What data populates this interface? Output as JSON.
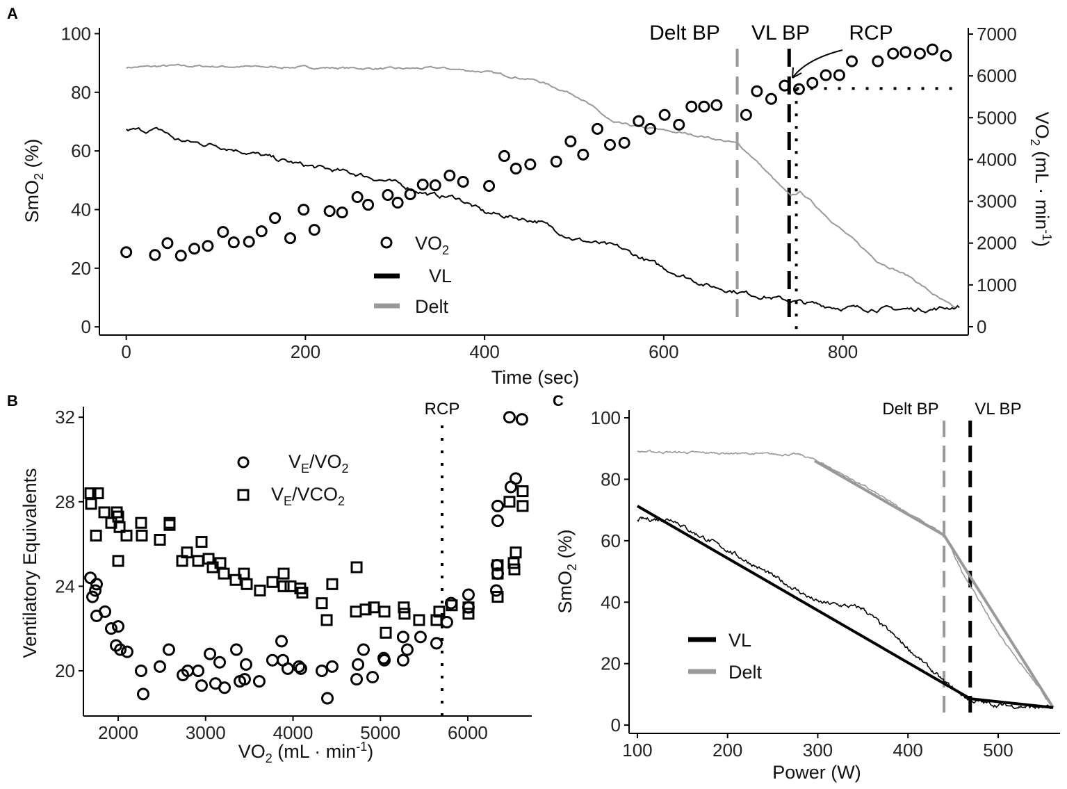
{
  "colors": {
    "vl": "#000000",
    "delt": "#999999",
    "points": "#000000"
  },
  "chart_data": [
    {
      "panel": "A",
      "type": "line",
      "xlabel": "Time (sec)",
      "ylabel": {
        "main": "SmO",
        "sub": "2",
        "rest": " (%)"
      },
      "y2label": {
        "main": "VO",
        "sub": "2",
        "rest": " (mL · min",
        "sup": "-1",
        "end": ")"
      },
      "xlim": [
        -30,
        940
      ],
      "ylim": [
        -2.8,
        102
      ],
      "y2lim": [
        -200,
        7150
      ],
      "xticks": [
        0,
        200,
        400,
        600,
        800
      ],
      "yticks": [
        0,
        20,
        40,
        60,
        80,
        100
      ],
      "y2ticks": [
        0,
        1000,
        2000,
        3000,
        4000,
        5000,
        6000,
        7000
      ],
      "legend": {
        "position": "center-bottom",
        "items": [
          {
            "main": "VO",
            "sub": "2",
            "shape": "circle"
          },
          {
            "main": "VL",
            "shape": "line"
          },
          {
            "main": "Delt",
            "shape": "line"
          }
        ]
      },
      "annotations": {
        "delt_bp": "Delt BP",
        "vl_bp": "VL BP",
        "rcp": "RCP"
      },
      "markers": {
        "delt_bp_time": 682,
        "vl_bp_time": 740,
        "rcp_time": 748,
        "rcp_vo2": 5700
      },
      "series": [
        {
          "name": "VL",
          "axis": "left",
          "x": [
            0,
            40,
            55,
            70,
            100,
            130,
            170,
            200,
            260,
            300,
            340,
            370,
            400,
            460,
            500,
            550,
            600,
            650,
            700,
            740,
            760,
            800,
            860,
            900,
            930
          ],
          "y": [
            67,
            67,
            64,
            63,
            62,
            60,
            57,
            55,
            52,
            49,
            45,
            44,
            39,
            36,
            30,
            27,
            20,
            14,
            11,
            9,
            8,
            6.5,
            6,
            6,
            7
          ]
        },
        {
          "name": "Delt",
          "axis": "left",
          "x": [
            0,
            50,
            200,
            300,
            350,
            400,
            459,
            505,
            544,
            644,
            682,
            699,
            741,
            753,
            799,
            838,
            877,
            908,
            927
          ],
          "y": [
            88.5,
            89,
            88.5,
            88,
            88.3,
            87,
            84,
            78.6,
            69.5,
            65,
            62.5,
            58,
            44.5,
            46,
            33,
            22.6,
            16.7,
            9.5,
            6
          ]
        },
        {
          "name": "VO2",
          "axis": "right",
          "type": "scatter",
          "x": [
            0,
            32,
            46,
            61,
            76,
            91,
            108,
            120,
            137,
            151,
            166,
            183,
            198,
            210,
            227,
            241,
            258,
            270,
            292,
            303,
            317,
            331,
            345,
            361,
            376,
            405,
            422,
            435,
            451,
            480,
            496,
            510,
            526,
            540,
            556,
            572,
            585,
            601,
            617,
            631,
            645,
            659,
            692,
            704,
            720,
            735,
            751,
            766,
            781,
            796,
            810,
            839,
            856,
            870,
            886,
            900,
            915
          ],
          "y": [
            1783,
            1717,
            2000,
            1700,
            1867,
            1933,
            2267,
            2017,
            2033,
            2283,
            2600,
            2117,
            2800,
            2317,
            2767,
            2733,
            3100,
            2917,
            3150,
            2967,
            3167,
            3400,
            3383,
            3617,
            3467,
            3367,
            4083,
            3783,
            3883,
            3950,
            4433,
            4117,
            4733,
            4350,
            4400,
            4917,
            4733,
            5067,
            4833,
            5267,
            5267,
            5300,
            5067,
            5633,
            5450,
            5767,
            5683,
            5833,
            6017,
            6017,
            6350,
            6350,
            6533,
            6567,
            6533,
            6633,
            6483
          ]
        }
      ]
    },
    {
      "panel": "B",
      "type": "scatter",
      "xlabel": {
        "main": "VO",
        "sub": "2",
        "rest": " (mL · min",
        "sup": "-1",
        "end": ")"
      },
      "ylabel": "Ventilatory Equivalents",
      "xlim": [
        1602,
        6732
      ],
      "ylim": [
        17.86,
        32.5
      ],
      "xticks": [
        2000,
        3000,
        4000,
        5000,
        6000
      ],
      "yticks": [
        20,
        24,
        28,
        32
      ],
      "annotations": {
        "rcp": "RCP"
      },
      "markers": {
        "rcp_vo2": 5706
      },
      "legend": {
        "position": "top-center",
        "items": [
          {
            "pre": "V",
            "sub": "E",
            "main": "/VO",
            "sub2": "2",
            "shape": "circle"
          },
          {
            "pre": "V",
            "sub": "E",
            "main": "/VCO",
            "sub2": "2",
            "shape": "square"
          }
        ]
      },
      "series": [
        {
          "name": "VE/VO2",
          "shape": "circle",
          "x": [
            1682,
            1753,
            1738,
            1706,
            1753,
            1849,
            1920,
            2000,
            1976,
            2024,
            2103,
            2262,
            2286,
            2477,
            2580,
            2740,
            2795,
            2915,
            2954,
            3050,
            3113,
            3161,
            3217,
            3352,
            3392,
            3463,
            3447,
            3614,
            3765,
            3869,
            3885,
            3940,
            4068,
            4091,
            4330,
            4394,
            4449,
            4744,
            4807,
            4728,
            4911,
            5038,
            5046,
            5260,
            5260,
            5308,
            5459,
            5642,
            5761,
            5809,
            6008,
            6008,
            6326,
            6342,
            6334,
            6342,
            6342,
            6493,
            6549,
            6477,
            6620
          ],
          "y": [
            24.4,
            24.1,
            23.8,
            23.5,
            22.6,
            22.8,
            22.0,
            22.1,
            21.2,
            21.0,
            20.9,
            20.0,
            18.9,
            20.2,
            21.0,
            19.8,
            20.0,
            20.0,
            19.3,
            20.8,
            19.4,
            20.4,
            19.2,
            21.0,
            19.5,
            20.3,
            19.6,
            19.5,
            20.5,
            21.4,
            20.5,
            20.1,
            20.2,
            20.1,
            20.0,
            18.7,
            20.2,
            20.3,
            21.0,
            19.6,
            19.7,
            20.6,
            20.5,
            20.5,
            21.6,
            21.0,
            21.6,
            21.3,
            22.3,
            23.2,
            23.6,
            23.0,
            23.8,
            24.6,
            25.0,
            27.8,
            27.1,
            28.7,
            29.1,
            32.0,
            31.9
          ]
        },
        {
          "name": "VE/VCO2",
          "shape": "square",
          "x": [
            1682,
            1690,
            1769,
            1746,
            1841,
            1920,
            1984,
            2000,
            2016,
            2000,
            2095,
            2262,
            2270,
            2477,
            2588,
            2588,
            2732,
            2787,
            2915,
            2954,
            3034,
            3082,
            3169,
            3209,
            3344,
            3439,
            3471,
            3622,
            3765,
            3893,
            3893,
            3972,
            4083,
            4107,
            4330,
            4386,
            4449,
            4728,
            4720,
            4831,
            4926,
            5046,
            5062,
            5268,
            5276,
            5443,
            5642,
            5674,
            5817,
            6008,
            6008,
            6342,
            6342,
            6342,
            6533,
            6549,
            6525,
            6477,
            6628,
            6628
          ],
          "y": [
            28.4,
            27.9,
            28.4,
            26.4,
            27.5,
            27.0,
            27.5,
            27.3,
            26.8,
            25.2,
            26.4,
            27.0,
            26.4,
            26.2,
            27.0,
            26.9,
            25.2,
            25.6,
            25.2,
            26.1,
            25.3,
            24.9,
            25.1,
            24.6,
            24.3,
            24.6,
            24.1,
            23.8,
            24.2,
            24.6,
            24.0,
            24.0,
            23.9,
            23.7,
            23.2,
            22.4,
            24.1,
            24.9,
            22.8,
            22.9,
            23.0,
            22.8,
            21.8,
            23.0,
            22.7,
            22.4,
            22.4,
            22.8,
            23.1,
            23.0,
            22.7,
            23.5,
            24.6,
            25.0,
            24.8,
            25.6,
            25.1,
            28.0,
            28.5,
            27.8
          ]
        }
      ]
    },
    {
      "panel": "C",
      "type": "line",
      "xlabel": "Power (W)",
      "ylabel": {
        "main": "SmO",
        "sub": "2",
        "rest": " (%)"
      },
      "xlim": [
        90.8,
        568.6
      ],
      "ylim": [
        -2.7,
        102.5
      ],
      "xticks": [
        100,
        200,
        300,
        400,
        500
      ],
      "yticks": [
        0,
        20,
        40,
        60,
        80,
        100
      ],
      "annotations": {
        "delt_bp": "Delt BP",
        "vl_bp": "VL BP"
      },
      "markers": {
        "delt_bp_power": 440,
        "vl_bp_power": 469
      },
      "legend": {
        "position": "bottom-left",
        "items": [
          {
            "main": "VL"
          },
          {
            "main": "Delt"
          }
        ]
      },
      "series": [
        {
          "name": "VL raw",
          "x": [
            100,
            140,
            160,
            200,
            300,
            350,
            400,
            440,
            469,
            500,
            560
          ],
          "y": [
            67,
            67,
            63,
            57,
            40,
            38,
            25,
            14,
            8,
            6.5,
            5.5
          ]
        },
        {
          "name": "VL fit",
          "x": [
            100,
            469,
            561
          ],
          "y": [
            71.3,
            8.6,
            5.7
          ]
        },
        {
          "name": "Delt raw",
          "x": [
            100,
            200,
            280,
            300,
            350,
            440,
            460,
            500,
            561
          ],
          "y": [
            89,
            88.5,
            88,
            86,
            78,
            62,
            50,
            30,
            5.7
          ]
        },
        {
          "name": "Delt fit",
          "x": [
            296.5,
            440,
            561
          ],
          "y": [
            86,
            61.8,
            5.7
          ]
        }
      ]
    }
  ]
}
